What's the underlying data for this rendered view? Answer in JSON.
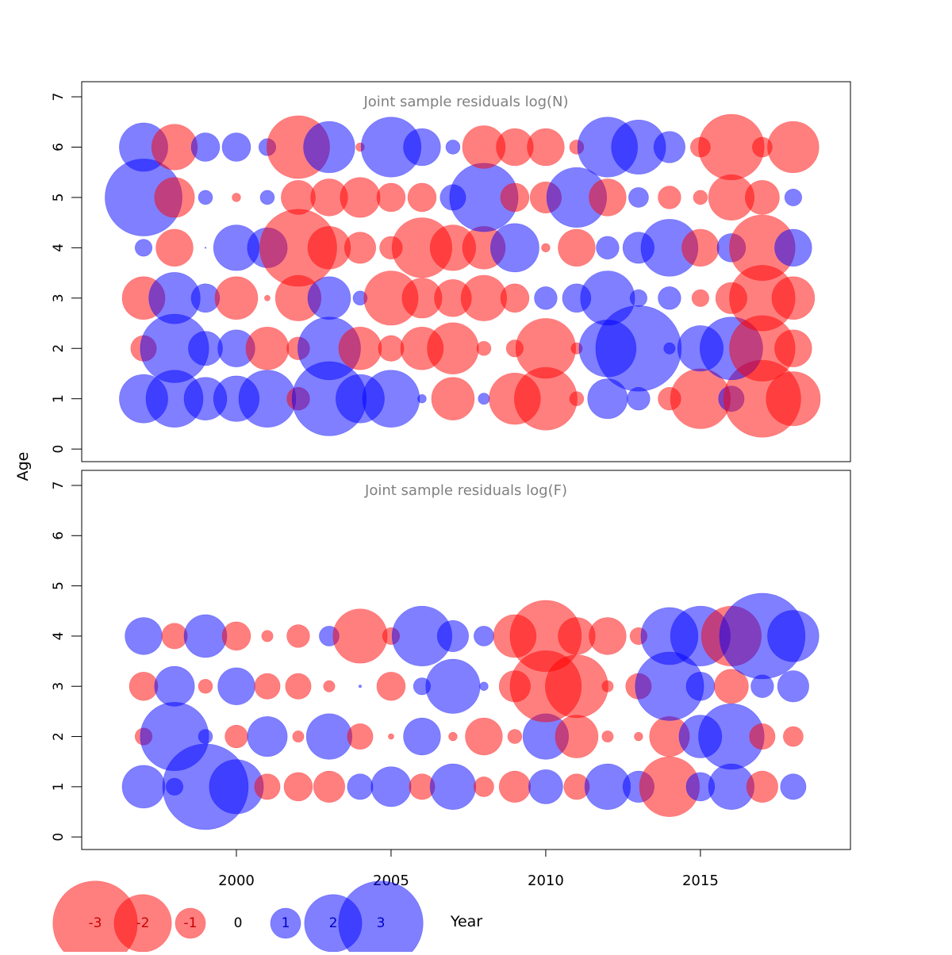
{
  "colors": {
    "positive": "#0000ff",
    "negative": "#ff0000",
    "bubble_opacity": 0.5,
    "panel_title": "#808080",
    "axis": "#000000"
  },
  "chart_data": [
    {
      "type": "scatter",
      "subtype": "bubble",
      "title": "Joint sample residuals log(N)",
      "ylabel": "Age",
      "xlim": [
        1995.0,
        2019.85
      ],
      "ylim": [
        -0.25,
        7.3
      ],
      "yticks": [
        0,
        1,
        2,
        3,
        4,
        5,
        6,
        7
      ],
      "x": [
        1997,
        1998,
        1999,
        2000,
        2001,
        2002,
        2003,
        2004,
        2005,
        2006,
        2007,
        2008,
        2009,
        2010,
        2011,
        2012,
        2013,
        2014,
        2015,
        2016,
        2017,
        2018
      ],
      "ages": [
        1,
        2,
        3,
        4,
        5,
        6
      ],
      "residuals": [
        [
          1.7,
          2.0,
          1.5,
          1.6,
          2.0,
          -0.8,
          2.6,
          1.7,
          2.0,
          0.3,
          -1.5,
          0.4,
          -1.8,
          -2.2,
          -0.5,
          1.4,
          0.8,
          -0.8,
          -2.1,
          0.9,
          -2.7,
          -1.9
        ],
        [
          -0.9,
          2.4,
          1.2,
          1.3,
          -1.5,
          -0.8,
          2.2,
          -1.5,
          -0.9,
          -1.5,
          -1.8,
          -0.5,
          -0.6,
          -2.1,
          -0.4,
          2.0,
          3.0,
          0.4,
          1.6,
          2.2,
          -2.3,
          -1.3
        ],
        [
          -1.5,
          1.8,
          1.0,
          -1.5,
          -0.2,
          -1.6,
          1.5,
          0.5,
          -1.9,
          -1.4,
          -1.3,
          -1.6,
          -1.0,
          0.8,
          1.0,
          1.9,
          0.6,
          0.8,
          -0.6,
          -1.1,
          -2.3,
          -1.5
        ],
        [
          0.6,
          -1.3,
          0.05,
          1.6,
          1.4,
          -2.7,
          -1.5,
          -1.1,
          -0.8,
          -2.1,
          -1.6,
          -1.5,
          1.7,
          -0.3,
          -1.3,
          0.8,
          1.1,
          2.0,
          -1.3,
          1.0,
          -2.3,
          1.3
        ],
        [
          2.7,
          -1.4,
          0.5,
          -0.3,
          0.5,
          -1.2,
          -1.3,
          -1.4,
          -1.0,
          -1.0,
          0.9,
          2.4,
          -1.0,
          -1.1,
          2.1,
          -1.3,
          0.7,
          -0.8,
          -0.5,
          -1.6,
          -1.2,
          0.6
        ],
        [
          1.7,
          -1.6,
          1.0,
          1.0,
          0.6,
          -2.2,
          1.8,
          -0.3,
          2.1,
          1.3,
          0.5,
          -1.5,
          -1.3,
          -1.3,
          -0.5,
          2.1,
          1.9,
          1.1,
          -0.7,
          -2.3,
          -0.7,
          -1.8
        ]
      ]
    },
    {
      "type": "scatter",
      "subtype": "bubble",
      "title": "Joint sample residuals log(F)",
      "xlabel": "Year",
      "xlim": [
        1995.0,
        2019.85
      ],
      "ylim": [
        -0.25,
        7.3
      ],
      "yticks": [
        0,
        1,
        2,
        3,
        4,
        5,
        6,
        7
      ],
      "xticks": [
        2000,
        2005,
        2010,
        2015
      ],
      "x": [
        1997,
        1998,
        1999,
        2000,
        2001,
        2002,
        2003,
        2004,
        2005,
        2006,
        2007,
        2008,
        2009,
        2010,
        2011,
        2012,
        2013,
        2014,
        2015,
        2016,
        2017,
        2018
      ],
      "ages": [
        1,
        2,
        3,
        4
      ],
      "residuals": [
        [
          1.5,
          0.6,
          3.0,
          1.9,
          -0.9,
          -1.0,
          -1.1,
          0.9,
          1.4,
          -0.9,
          1.6,
          -0.7,
          -1.1,
          1.2,
          -0.9,
          1.6,
          1.1,
          -2.1,
          1.0,
          1.6,
          -1.1,
          0.9
        ],
        [
          -0.6,
          2.4,
          0.5,
          -0.8,
          1.4,
          -0.4,
          1.6,
          -0.9,
          -0.2,
          1.3,
          -0.3,
          -1.3,
          -0.5,
          1.6,
          -1.5,
          -0.4,
          -0.3,
          -1.4,
          1.5,
          2.3,
          -0.9,
          -0.7
        ],
        [
          -1.0,
          1.4,
          -0.5,
          1.3,
          -0.9,
          -0.9,
          -0.4,
          0.1,
          -1.0,
          0.6,
          1.9,
          0.3,
          -1.1,
          -2.5,
          -2.2,
          -0.4,
          -0.9,
          2.4,
          1.0,
          -1.2,
          0.8,
          1.1
        ],
        [
          1.3,
          -0.9,
          1.5,
          -1.0,
          -0.4,
          -0.8,
          0.7,
          -1.9,
          -0.6,
          2.1,
          1.1,
          0.7,
          -1.5,
          -2.5,
          -1.3,
          -1.3,
          -0.6,
          2.0,
          2.1,
          -2.1,
          3.0,
          1.8
        ]
      ]
    }
  ],
  "legend": {
    "items": [
      {
        "label": "-3",
        "value": -3
      },
      {
        "label": "-2",
        "value": -2
      },
      {
        "label": "-1",
        "value": -1
      },
      {
        "label": "0",
        "value": 0
      },
      {
        "label": "1",
        "value": 1
      },
      {
        "label": "2",
        "value": 2
      },
      {
        "label": "3",
        "value": 3
      }
    ]
  }
}
